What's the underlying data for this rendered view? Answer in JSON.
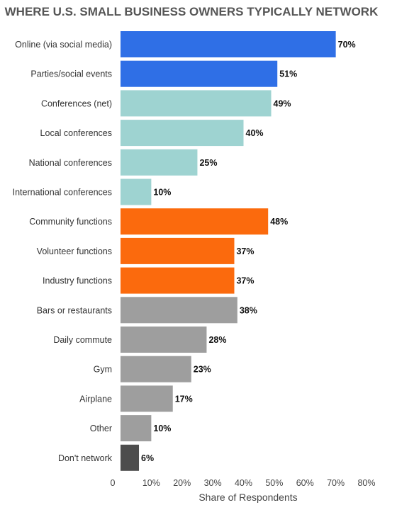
{
  "chart_data": {
    "type": "bar",
    "orientation": "horizontal",
    "title": "WHERE U.S. SMALL BUSINESS OWNERS TYPICALLY NETWORK",
    "xlabel": "Share of Respondents",
    "ylabel": "",
    "xlim": [
      0,
      80
    ],
    "x_ticks": [
      "0",
      "10%",
      "20%",
      "30%",
      "40%",
      "50%",
      "60%",
      "70%",
      "80%"
    ],
    "grid": false,
    "legend": "none",
    "categories": [
      "Online (via social media)",
      "Parties/social events",
      "Conferences (net)",
      "Local conferences",
      "National conferences",
      "International conferences",
      "Community functions",
      "Volunteer functions",
      "Industry functions",
      "Bars or restaurants",
      "Daily commute",
      "Gym",
      "Airplane",
      "Other",
      "Don't network"
    ],
    "values": [
      70,
      51,
      49,
      40,
      25,
      10,
      48,
      37,
      37,
      38,
      28,
      23,
      17,
      10,
      6
    ],
    "value_labels": [
      "70%",
      "51%",
      "49%",
      "40%",
      "25%",
      "10%",
      "48%",
      "37%",
      "37%",
      "38%",
      "28%",
      "23%",
      "17%",
      "10%",
      "6%"
    ],
    "bar_colors": [
      "#2f6fe6",
      "#2f6fe6",
      "#9ed3d1",
      "#9ed3d1",
      "#9ed3d1",
      "#9ed3d1",
      "#fb6a0d",
      "#fb6a0d",
      "#fb6a0d",
      "#9e9e9e",
      "#9e9e9e",
      "#9e9e9e",
      "#9e9e9e",
      "#9e9e9e",
      "#4d4d4d"
    ]
  }
}
